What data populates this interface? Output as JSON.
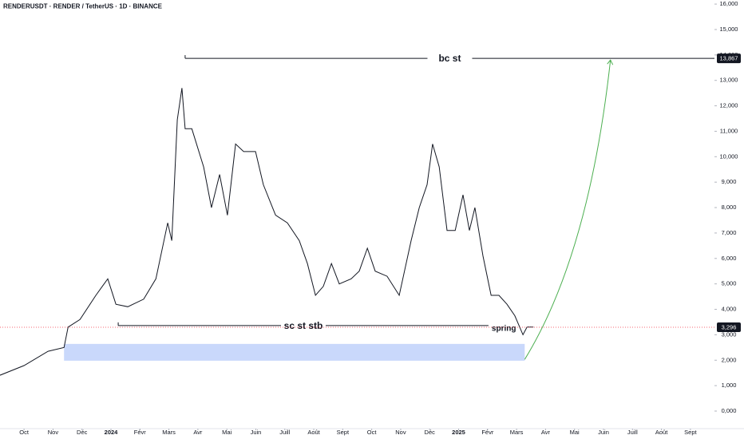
{
  "chart_data": {
    "type": "line",
    "title": "RENDERUSDT · RENDER / TetherUS · 1D · BINANCE",
    "x": [
      -0.83,
      0,
      0.83,
      1.38,
      1.52,
      1.93,
      2.48,
      2.89,
      3.17,
      3.58,
      4.13,
      4.55,
      4.96,
      5.1,
      5.29,
      5.45,
      5.56,
      5.79,
      6.2,
      6.47,
      6.75,
      7.02,
      7.3,
      7.58,
      7.99,
      8.26,
      8.68,
      9.09,
      9.5,
      9.78,
      10.06,
      10.33,
      10.61,
      10.88,
      11.29,
      11.57,
      11.85,
      12.12,
      12.53,
      12.95,
      13.36,
      13.64,
      13.91,
      14.1,
      14.33,
      14.6,
      14.88,
      15.15,
      15.37,
      15.56,
      15.84,
      16.12,
      16.39,
      16.67,
      16.94,
      17.22,
      17.36,
      17.58
    ],
    "values": [
      1.41,
      1.79,
      2.35,
      2.5,
      3.3,
      3.6,
      4.55,
      5.2,
      4.2,
      4.1,
      4.4,
      5.2,
      7.4,
      6.7,
      11.45,
      12.7,
      11.1,
      11.1,
      9.6,
      8.0,
      9.3,
      7.7,
      10.5,
      10.2,
      10.2,
      8.9,
      7.7,
      7.4,
      6.7,
      5.8,
      4.55,
      4.9,
      5.8,
      5.0,
      5.2,
      5.5,
      6.4,
      5.5,
      5.3,
      4.55,
      6.7,
      8.0,
      8.9,
      10.5,
      9.6,
      7.1,
      7.1,
      8.5,
      7.1,
      8.0,
      6.1,
      4.55,
      4.55,
      4.2,
      3.75,
      3.0,
      3.3,
      3.3
    ],
    "color": "#131722",
    "xlim": [
      -0.83,
      23.83
    ],
    "ylim": [
      -0.69,
      16.16
    ],
    "yticks": [
      {
        "value": 0,
        "label": "0,000"
      },
      {
        "value": 1,
        "label": "1,000"
      },
      {
        "value": 2,
        "label": "2,000"
      },
      {
        "value": 3,
        "label": "3,000"
      },
      {
        "value": 4,
        "label": "4,000"
      },
      {
        "value": 5,
        "label": "5,000"
      },
      {
        "value": 6,
        "label": "6,000"
      },
      {
        "value": 7,
        "label": "7,000"
      },
      {
        "value": 8,
        "label": "8,000"
      },
      {
        "value": 9,
        "label": "9,000"
      },
      {
        "value": 10,
        "label": "10,000"
      },
      {
        "value": 11,
        "label": "11,000"
      },
      {
        "value": 12,
        "label": "12,000"
      },
      {
        "value": 13,
        "label": "13,000"
      },
      {
        "value": 14,
        "label": "14,000"
      },
      {
        "value": 15,
        "label": "15,000"
      },
      {
        "value": 16,
        "label": "16,000"
      }
    ],
    "xticks": [
      {
        "value": 0,
        "label": "Oct"
      },
      {
        "value": 1,
        "label": "Nov"
      },
      {
        "value": 2,
        "label": "Déc"
      },
      {
        "value": 3,
        "label": "2024"
      },
      {
        "value": 4,
        "label": "Févr"
      },
      {
        "value": 5,
        "label": "Mars"
      },
      {
        "value": 6,
        "label": "Avr"
      },
      {
        "value": 7,
        "label": "Mai"
      },
      {
        "value": 8,
        "label": "Juin"
      },
      {
        "value": 9,
        "label": "Juill"
      },
      {
        "value": 10,
        "label": "Août"
      },
      {
        "value": 11,
        "label": "Sept"
      },
      {
        "value": 12,
        "label": "Oct"
      },
      {
        "value": 13,
        "label": "Nov"
      },
      {
        "value": 14,
        "label": "Déc"
      },
      {
        "value": 15,
        "label": "2025"
      },
      {
        "value": 16,
        "label": "Févr"
      },
      {
        "value": 17,
        "label": "Mars"
      },
      {
        "value": 18,
        "label": "Avr"
      },
      {
        "value": 19,
        "label": "Mai"
      },
      {
        "value": 20,
        "label": "Juin"
      },
      {
        "value": 21,
        "label": "Juill"
      },
      {
        "value": 22,
        "label": "Août"
      },
      {
        "value": 23,
        "label": "Sept"
      }
    ],
    "levels": [
      {
        "label": "bc st",
        "value": 13.867,
        "x": [
          5.56,
          23.83
        ]
      },
      {
        "label": "sc st stb",
        "value": 3.36,
        "x": [
          3.25,
          16.03
        ],
        "note": "spring"
      }
    ],
    "zone": {
      "xlim": [
        1.38,
        17.28
      ],
      "ylim": [
        1.98,
        2.64
      ],
      "color": "#c9d8fb"
    },
    "projection": {
      "x": [
        17.28,
        20.24
      ],
      "values": [
        2.03,
        13.8
      ],
      "color": "#4caf50"
    },
    "price_markers": [
      {
        "value": 13.867,
        "label": "13,867",
        "color": "#131722"
      },
      {
        "value": 3.296,
        "label": "3,296",
        "color": "#131722",
        "line_color": "#f23645"
      }
    ]
  }
}
